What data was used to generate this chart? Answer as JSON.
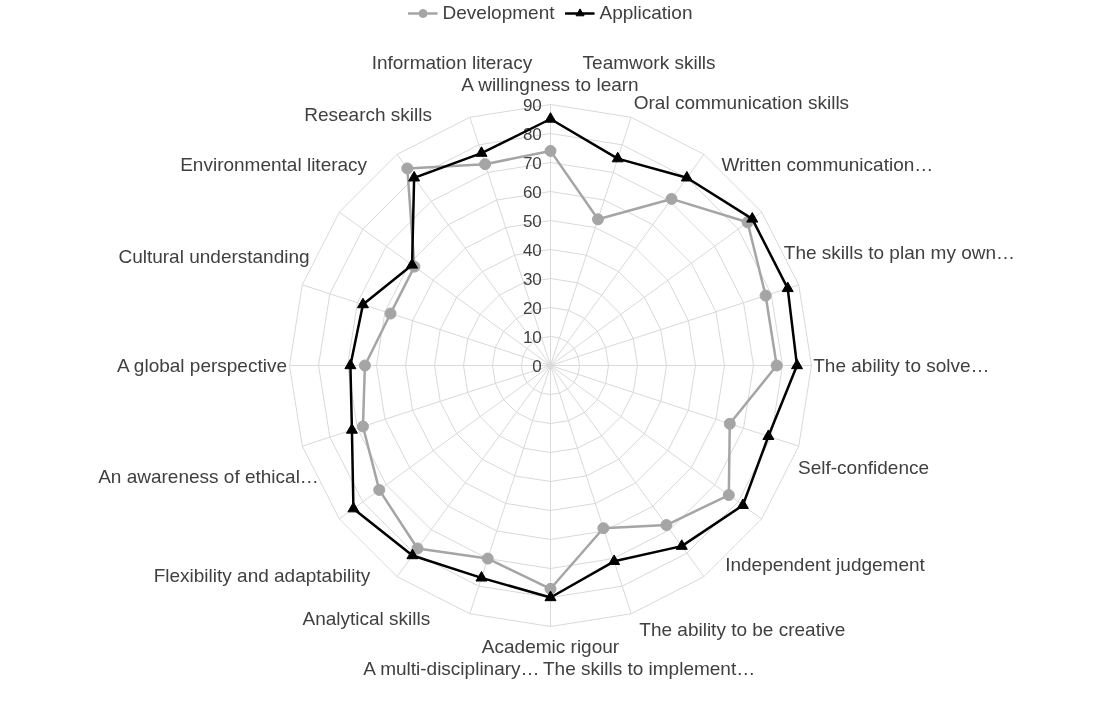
{
  "chart_data": {
    "type": "radar",
    "categories": [
      "A willingness to learn",
      "Teamwork skills",
      "Oral communication skills",
      "Written communication…",
      "The skills to plan my own…",
      "The ability to solve…",
      "Self-confidence",
      "Independent judgement",
      "The ability to be creative",
      "The skills to implement…",
      "Academic rigour",
      "A multi-disciplinary…",
      "Analytical skills",
      "Flexibility and adaptability",
      "An awareness of ethical…",
      "A global perspective",
      "Cultural understanding",
      "Environmental literacy",
      "Research skills",
      "Information literacy"
    ],
    "series": [
      {
        "name": "Development",
        "color": "#a5a5a5",
        "marker": "circle",
        "values": [
          74,
          53,
          71,
          84,
          78,
          78,
          65,
          76,
          68,
          59,
          77,
          70,
          78,
          73,
          68,
          64,
          58,
          58,
          84,
          73
        ]
      },
      {
        "name": "Application",
        "color": "#000000",
        "marker": "triangle",
        "values": [
          85,
          75,
          80,
          86,
          86,
          85,
          79,
          82,
          77,
          71,
          80,
          77,
          81,
          84,
          72,
          69,
          68,
          59,
          80,
          77
        ]
      }
    ],
    "ylim": [
      0,
      90
    ],
    "yticks": [
      0,
      10,
      20,
      30,
      40,
      50,
      60,
      70,
      80,
      90
    ],
    "grid": true,
    "legend": "top",
    "line_style": "solid"
  }
}
